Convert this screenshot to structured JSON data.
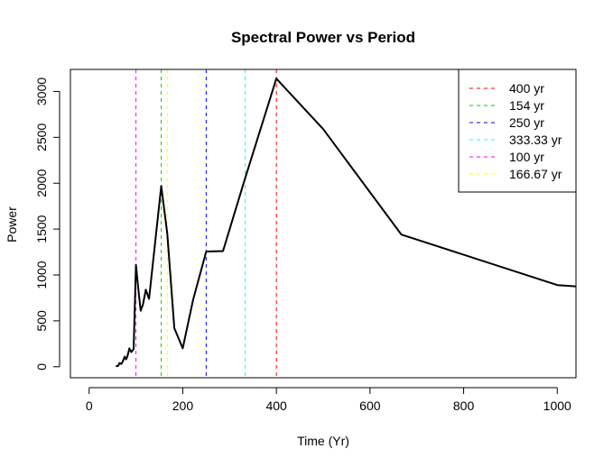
{
  "chart_data": {
    "type": "line",
    "title": "Spectral Power vs Period",
    "xlabel": "Time (Yr)",
    "ylabel": "Power",
    "xlim": [
      -40,
      1040
    ],
    "ylim": [
      -120,
      3240
    ],
    "x_ticks": [
      0,
      200,
      400,
      600,
      800,
      1000
    ],
    "y_ticks": [
      0,
      500,
      1000,
      1500,
      2000,
      2500,
      3000
    ],
    "grid": false,
    "legend_position": "top-right",
    "series": [
      {
        "color": "#000000",
        "points": [
          [
            57,
            5
          ],
          [
            62,
            10
          ],
          [
            65,
            40
          ],
          [
            69,
            30
          ],
          [
            72,
            60
          ],
          [
            76,
            110
          ],
          [
            79,
            80
          ],
          [
            82,
            120
          ],
          [
            86,
            200
          ],
          [
            90,
            160
          ],
          [
            95,
            190
          ],
          [
            100,
            1110
          ],
          [
            105,
            850
          ],
          [
            110,
            610
          ],
          [
            115,
            680
          ],
          [
            121,
            840
          ],
          [
            128,
            740
          ],
          [
            154,
            1970
          ],
          [
            167,
            1450
          ],
          [
            182,
            420
          ],
          [
            200,
            200
          ],
          [
            222,
            730
          ],
          [
            250,
            1255
          ],
          [
            286,
            1260
          ],
          [
            333,
            2050
          ],
          [
            400,
            3140
          ],
          [
            500,
            2590
          ],
          [
            667,
            1440
          ],
          [
            1000,
            890
          ],
          [
            1040,
            875
          ]
        ]
      }
    ],
    "vlines": [
      {
        "x": 400,
        "label": "400 yr",
        "color": "#FF0000"
      },
      {
        "x": 154,
        "label": "154 yr",
        "color": "#00CD00"
      },
      {
        "x": 250,
        "label": "250 yr",
        "color": "#0000FF"
      },
      {
        "x": 333.33,
        "label": "333.33 yr",
        "color": "#00FFFF"
      },
      {
        "x": 100,
        "label": "100 yr",
        "color": "#FF00FF"
      },
      {
        "x": 166.67,
        "label": "166.67 yr",
        "color": "#FFFF00"
      }
    ]
  }
}
